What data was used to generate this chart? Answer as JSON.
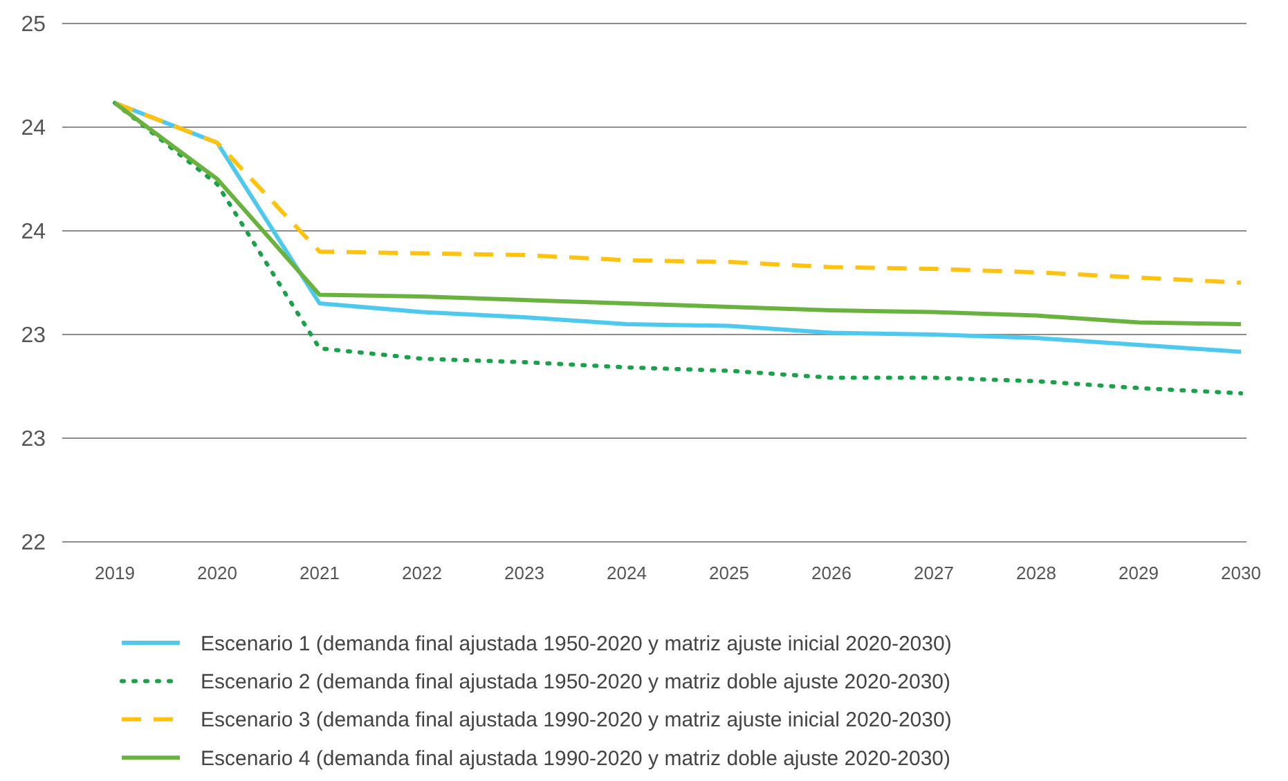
{
  "chart_data": {
    "type": "line",
    "categories": [
      "2019",
      "2020",
      "2021",
      "2022",
      "2023",
      "2024",
      "2025",
      "2026",
      "2027",
      "2028",
      "2029",
      "2030"
    ],
    "ylim": [
      22,
      25
    ],
    "yticks": [
      {
        "value": 22,
        "label": "22"
      },
      {
        "value": 22.6,
        "label": "23"
      },
      {
        "value": 23.2,
        "label": "23"
      },
      {
        "value": 23.8,
        "label": "24"
      },
      {
        "value": 24.4,
        "label": "24"
      },
      {
        "value": 25,
        "label": "25"
      }
    ],
    "grid": "y",
    "legend": "bottom",
    "series": [
      {
        "name": "Escenario 1 (demanda final ajustada 1950-2020 y matriz ajuste inicial 2020-2030)",
        "color": "#4dc9f0",
        "line_style": "solid",
        "values": [
          24.54,
          24.31,
          23.38,
          23.33,
          23.3,
          23.26,
          23.25,
          23.21,
          23.2,
          23.18,
          23.14,
          23.1
        ]
      },
      {
        "name": "Escenario 2 (demanda final ajustada 1950-2020 y matriz doble ajuste 2020-2030)",
        "color": "#1aa24a",
        "line_style": "dotted",
        "values": [
          24.54,
          24.07,
          23.12,
          23.06,
          23.04,
          23.01,
          22.99,
          22.95,
          22.95,
          22.93,
          22.89,
          22.86
        ]
      },
      {
        "name": "Escenario 3 (demanda final ajustada 1990-2020 y matriz ajuste inicial 2020-2030)",
        "color": "#ffc20e",
        "line_style": "dashed",
        "values": [
          24.54,
          24.31,
          23.68,
          23.67,
          23.66,
          23.63,
          23.62,
          23.59,
          23.58,
          23.56,
          23.53,
          23.5
        ]
      },
      {
        "name": "Escenario 4 (demanda final ajustada 1990-2020 y matriz doble ajuste 2020-2030)",
        "color": "#6ab23e",
        "line_style": "solid",
        "values": [
          24.54,
          24.1,
          23.43,
          23.42,
          23.4,
          23.38,
          23.36,
          23.34,
          23.33,
          23.31,
          23.27,
          23.26
        ]
      }
    ]
  }
}
